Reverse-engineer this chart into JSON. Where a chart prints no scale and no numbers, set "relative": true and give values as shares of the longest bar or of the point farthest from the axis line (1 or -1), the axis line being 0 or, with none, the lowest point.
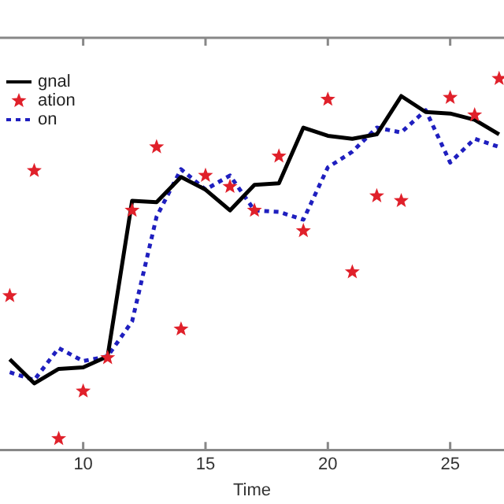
{
  "chart_data": {
    "type": "line",
    "xlabel": "Time",
    "relative": true,
    "xlim": [
      6.6,
      27.2
    ],
    "xticks": [
      10,
      15,
      20,
      25
    ],
    "grid": false,
    "legend": "top left",
    "series": [
      {
        "name": "gnal",
        "type": "line",
        "color": "#000000",
        "line_style": "solid",
        "marker": "none",
        "x": [
          7,
          8,
          9,
          10,
          11,
          12,
          13,
          14,
          15,
          16,
          17,
          18,
          19,
          20,
          21,
          22,
          23,
          24,
          25,
          26,
          27
        ],
        "values": [
          0.244,
          0.179,
          0.218,
          0.222,
          0.252,
          0.671,
          0.667,
          0.735,
          0.701,
          0.645,
          0.714,
          0.718,
          0.868,
          0.846,
          0.838,
          0.85,
          0.953,
          0.91,
          0.906,
          0.889,
          0.85
        ]
      },
      {
        "name": "ation",
        "type": "scatter",
        "color": "#e0202a",
        "marker": "star",
        "x": [
          7,
          8,
          9,
          10,
          11,
          12,
          13,
          14,
          15,
          16,
          17,
          18,
          19,
          20,
          21,
          22,
          23,
          25,
          26,
          27
        ],
        "values": [
          0.415,
          0.752,
          0.03,
          0.158,
          0.248,
          0.645,
          0.816,
          0.325,
          0.739,
          0.709,
          0.645,
          0.791,
          0.59,
          0.944,
          0.479,
          0.684,
          0.671,
          0.949,
          0.902,
          1
        ]
      },
      {
        "name": "on",
        "type": "line",
        "color": "#1f1fbf",
        "line_style": "dotted",
        "marker": "none",
        "x": [
          7,
          8,
          9,
          10,
          11,
          12,
          13,
          14,
          15,
          16,
          17,
          18,
          19,
          20,
          21,
          22,
          23,
          24,
          25,
          26,
          27
        ],
        "values": [
          0.209,
          0.188,
          0.274,
          0.239,
          0.252,
          0.346,
          0.628,
          0.756,
          0.701,
          0.739,
          0.645,
          0.641,
          0.62,
          0.761,
          0.803,
          0.868,
          0.855,
          0.915,
          0.774,
          0.838,
          0.816
        ]
      }
    ]
  }
}
